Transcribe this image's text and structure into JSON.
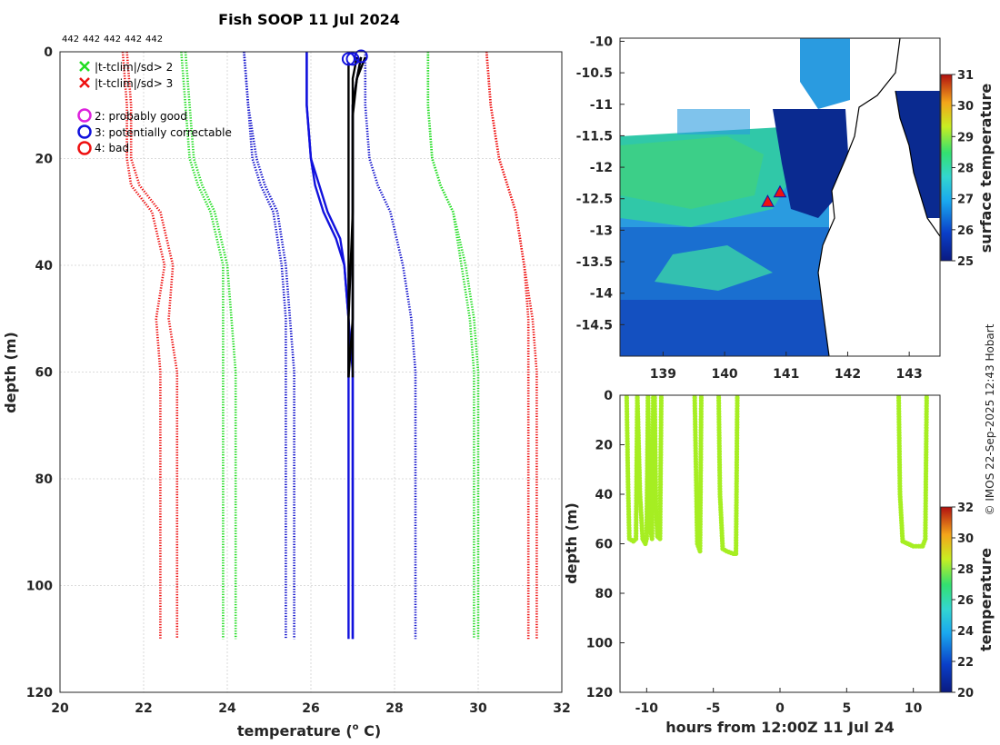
{
  "chart_data": [
    {
      "type": "line",
      "title": "Fish SOOP 11 Jul 2024",
      "id_labels": [
        "442",
        "442",
        "442",
        "442",
        "442"
      ],
      "xlabel": "temperature (",
      "xlabel_sup": "o",
      "xlabel_end": " C)",
      "ylabel": "depth (m)",
      "xlim": [
        20,
        32
      ],
      "ylim": [
        120,
        0
      ],
      "xticks": [
        20,
        22,
        24,
        26,
        28,
        30,
        32
      ],
      "yticks": [
        0,
        20,
        40,
        60,
        80,
        100,
        120
      ],
      "legend": {
        "cross_items": [
          {
            "label": "|t-tclim|/sd> 2",
            "color": "#22dd22"
          },
          {
            "label": "|t-tclim|/sd> 3",
            "color": "#ee1111"
          }
        ],
        "circle_items": [
          {
            "label": "2: probably good",
            "color": "#dd22dd"
          },
          {
            "label": "3: potentially correctable",
            "color": "#1111dd"
          },
          {
            "label": "4: bad",
            "color": "#ee1111"
          }
        ]
      },
      "series": [
        {
          "name": "clim -3sd (a)",
          "color": "#ee1111",
          "style": "dotted",
          "x": [
            21.5,
            21.6,
            21.6,
            21.7,
            22.2,
            22.5,
            22.3,
            22.4,
            22.4,
            22.4
          ],
          "y": [
            0,
            10,
            20,
            25,
            30,
            40,
            50,
            60,
            80,
            110
          ]
        },
        {
          "name": "clim -3sd (b)",
          "color": "#ee1111",
          "style": "dotted",
          "x": [
            21.6,
            21.7,
            21.7,
            21.9,
            22.4,
            22.7,
            22.6,
            22.8,
            22.8,
            22.8
          ],
          "y": [
            0,
            10,
            20,
            25,
            30,
            40,
            50,
            60,
            80,
            110
          ]
        },
        {
          "name": "clim -2sd (a)",
          "color": "#22dd22",
          "style": "dotted",
          "x": [
            22.9,
            23.0,
            23.1,
            23.3,
            23.6,
            23.9,
            23.9,
            23.9,
            23.9,
            23.9
          ],
          "y": [
            0,
            10,
            20,
            25,
            30,
            40,
            50,
            60,
            80,
            110
          ]
        },
        {
          "name": "clim -2sd (b)",
          "color": "#22dd22",
          "style": "dotted",
          "x": [
            23.0,
            23.1,
            23.2,
            23.4,
            23.7,
            24.0,
            24.1,
            24.2,
            24.2,
            24.2
          ],
          "y": [
            0,
            10,
            20,
            25,
            30,
            40,
            50,
            60,
            80,
            110
          ]
        },
        {
          "name": "clim -1sd (a)",
          "color": "#1111cc",
          "style": "dotted",
          "x": [
            24.4,
            24.5,
            24.7,
            24.9,
            25.2,
            25.4,
            25.5,
            25.6,
            25.6,
            25.6
          ],
          "y": [
            0,
            10,
            20,
            25,
            30,
            40,
            50,
            60,
            80,
            110
          ]
        },
        {
          "name": "clim -1sd (b)",
          "color": "#1111cc",
          "style": "dotted",
          "x": [
            24.4,
            24.5,
            24.6,
            24.8,
            25.1,
            25.3,
            25.4,
            25.4,
            25.4,
            25.4
          ],
          "y": [
            0,
            10,
            20,
            25,
            30,
            40,
            50,
            60,
            80,
            110
          ]
        },
        {
          "name": "clim +1sd (a)",
          "color": "#1111cc",
          "style": "dotted",
          "x": [
            27.3,
            27.3,
            27.4,
            27.6,
            27.9,
            28.2,
            28.4,
            28.5,
            28.5,
            28.5
          ],
          "y": [
            0,
            10,
            20,
            25,
            30,
            40,
            50,
            60,
            80,
            110
          ]
        },
        {
          "name": "clim +2sd (a)",
          "color": "#22dd22",
          "style": "dotted",
          "x": [
            28.8,
            28.8,
            28.9,
            29.1,
            29.4,
            29.6,
            29.8,
            29.9,
            29.9,
            29.9
          ],
          "y": [
            0,
            10,
            20,
            25,
            30,
            40,
            50,
            60,
            80,
            110
          ]
        },
        {
          "name": "clim +2sd (b)",
          "color": "#22dd22",
          "style": "dotted",
          "x": [
            28.8,
            28.8,
            28.9,
            29.1,
            29.4,
            29.7,
            29.9,
            30.0,
            30.0,
            30.0
          ],
          "y": [
            0,
            10,
            20,
            25,
            30,
            40,
            50,
            60,
            80,
            110
          ]
        },
        {
          "name": "clim +3sd (a)",
          "color": "#ee1111",
          "style": "dotted",
          "x": [
            30.2,
            30.3,
            30.5,
            30.7,
            30.9,
            31.1,
            31.3,
            31.4,
            31.4,
            31.4
          ],
          "y": [
            0,
            10,
            20,
            25,
            30,
            40,
            50,
            60,
            80,
            110
          ]
        },
        {
          "name": "clim +3sd (b)",
          "color": "#ee1111",
          "style": "dotted",
          "x": [
            30.2,
            30.3,
            30.5,
            30.7,
            30.9,
            31.1,
            31.2,
            31.2,
            31.2,
            31.2
          ],
          "y": [
            0,
            10,
            20,
            25,
            30,
            40,
            50,
            60,
            80,
            110
          ]
        },
        {
          "name": "profile blue 1",
          "color": "#1111dd",
          "style": "solid",
          "x": [
            25.9,
            25.9,
            26.0,
            26.1,
            26.3,
            26.6,
            26.8,
            26.9,
            26.9,
            26.9
          ],
          "y": [
            0,
            10,
            20,
            25,
            30,
            35,
            40,
            50,
            60,
            110
          ]
        },
        {
          "name": "profile blue 2",
          "color": "#1111dd",
          "style": "solid",
          "x": [
            25.9,
            25.9,
            26.0,
            26.2,
            26.4,
            26.7,
            26.8,
            26.9,
            27.0,
            27.0
          ],
          "y": [
            0,
            10,
            20,
            25,
            30,
            35,
            40,
            50,
            60,
            110
          ]
        },
        {
          "name": "profile blue 3",
          "color": "#1111dd",
          "style": "solid",
          "x": [
            27.2,
            27.1,
            27.0,
            27.0,
            27.0,
            27.0,
            27.0,
            27.0
          ],
          "y": [
            1,
            5,
            10,
            20,
            30,
            40,
            50,
            110
          ]
        },
        {
          "name": "profile black 1",
          "color": "#000000",
          "style": "solid",
          "x": [
            26.9,
            26.9,
            26.9,
            26.9,
            26.9,
            26.9
          ],
          "y": [
            2,
            10,
            20,
            40,
            55,
            61
          ]
        },
        {
          "name": "profile black 2",
          "color": "#000000",
          "style": "solid",
          "x": [
            27.2,
            27.1,
            27.0,
            27.0,
            27.0,
            27.0
          ],
          "y": [
            1,
            5,
            10,
            20,
            40,
            61
          ]
        },
        {
          "name": "profile black 3",
          "color": "#000000",
          "style": "solid",
          "x": [
            27.1,
            27.0,
            27.0,
            27.0,
            26.9,
            26.9
          ],
          "y": [
            1,
            5,
            15,
            30,
            50,
            61
          ]
        },
        {
          "name": "profile black 4",
          "color": "#000000",
          "style": "solid",
          "x": [
            27.3,
            27.1,
            27.0,
            27.0,
            27.0,
            26.9
          ],
          "y": [
            1,
            5,
            12,
            30,
            50,
            61
          ]
        }
      ],
      "flag_markers": [
        {
          "x": 26.9,
          "y": 1,
          "color": "#1111dd"
        },
        {
          "x": 27.0,
          "y": 1,
          "color": "#1111dd"
        },
        {
          "x": 27.2,
          "y": 0.5,
          "color": "#1111dd"
        }
      ]
    },
    {
      "type": "heatmap",
      "title": "",
      "xlabel": "",
      "ylabel": "",
      "xlim": [
        138.3,
        143.5
      ],
      "ylim": [
        -15.0,
        -9.95
      ],
      "xticks": [
        139,
        140,
        141,
        142,
        143
      ],
      "yticks": [
        -10,
        -10.5,
        -11,
        -11.5,
        -12,
        -12.5,
        -13,
        -13.5,
        -14,
        -14.5
      ],
      "colorbar_label": "surface temperature",
      "colorbar_range": [
        25,
        31
      ],
      "colorbar_ticks": [
        25,
        26,
        27,
        28,
        29,
        30,
        31
      ],
      "profile_locations": [
        {
          "lon": 140.7,
          "lat": -12.55,
          "color": "#ee1111",
          "marker": "triangle"
        },
        {
          "lon": 140.9,
          "lat": -12.4,
          "color": "#ee1111",
          "marker": "triangle"
        }
      ]
    },
    {
      "type": "scatter",
      "title": "",
      "xlabel": "hours from 12:00Z 11 Jul 24",
      "ylabel": "depth (m)",
      "xlim": [
        -12,
        12
      ],
      "ylim": [
        120,
        0
      ],
      "xticks": [
        -10,
        -5,
        0,
        5,
        10
      ],
      "yticks": [
        0,
        20,
        40,
        60,
        80,
        100,
        120
      ],
      "colorbar_label": "temperature",
      "colorbar_range": [
        20,
        32
      ],
      "colorbar_ticks": [
        20,
        22,
        24,
        26,
        28,
        30,
        32
      ],
      "point_color": "#a6ee22",
      "tracks": [
        {
          "t": [
            -11.5,
            -11.4,
            -11.3,
            -11.0,
            -10.8,
            -10.7
          ],
          "depth": [
            0,
            35,
            58,
            59,
            58,
            0
          ]
        },
        {
          "t": [
            -10.7,
            -10.5,
            -10.3,
            -10.1,
            -10.0,
            -9.9
          ],
          "depth": [
            0,
            40,
            58,
            60,
            58,
            0
          ]
        },
        {
          "t": [
            -9.9,
            -9.8,
            -9.7,
            -9.6,
            -9.5
          ],
          "depth": [
            0,
            30,
            55,
            58,
            0
          ]
        },
        {
          "t": [
            -9.4,
            -9.3,
            -9.2,
            -9.0,
            -8.9
          ],
          "depth": [
            0,
            45,
            57,
            58,
            0
          ]
        },
        {
          "t": [
            -6.4,
            -6.3,
            -6.2,
            -6.0,
            -5.9
          ],
          "depth": [
            0,
            30,
            60,
            63,
            0
          ]
        },
        {
          "t": [
            -4.6,
            -4.5,
            -4.3,
            -4.0,
            -3.5,
            -3.3,
            -3.2
          ],
          "depth": [
            0,
            40,
            62,
            63,
            64,
            64,
            0
          ]
        },
        {
          "t": [
            8.9,
            9.0,
            9.2,
            9.6,
            10.0,
            10.4,
            10.7,
            10.9,
            11.0
          ],
          "depth": [
            0,
            40,
            59,
            60,
            61,
            61,
            61,
            58,
            0
          ]
        }
      ]
    }
  ],
  "credit": "© IMOS 22-Sep-2025 12:43 Hobart"
}
